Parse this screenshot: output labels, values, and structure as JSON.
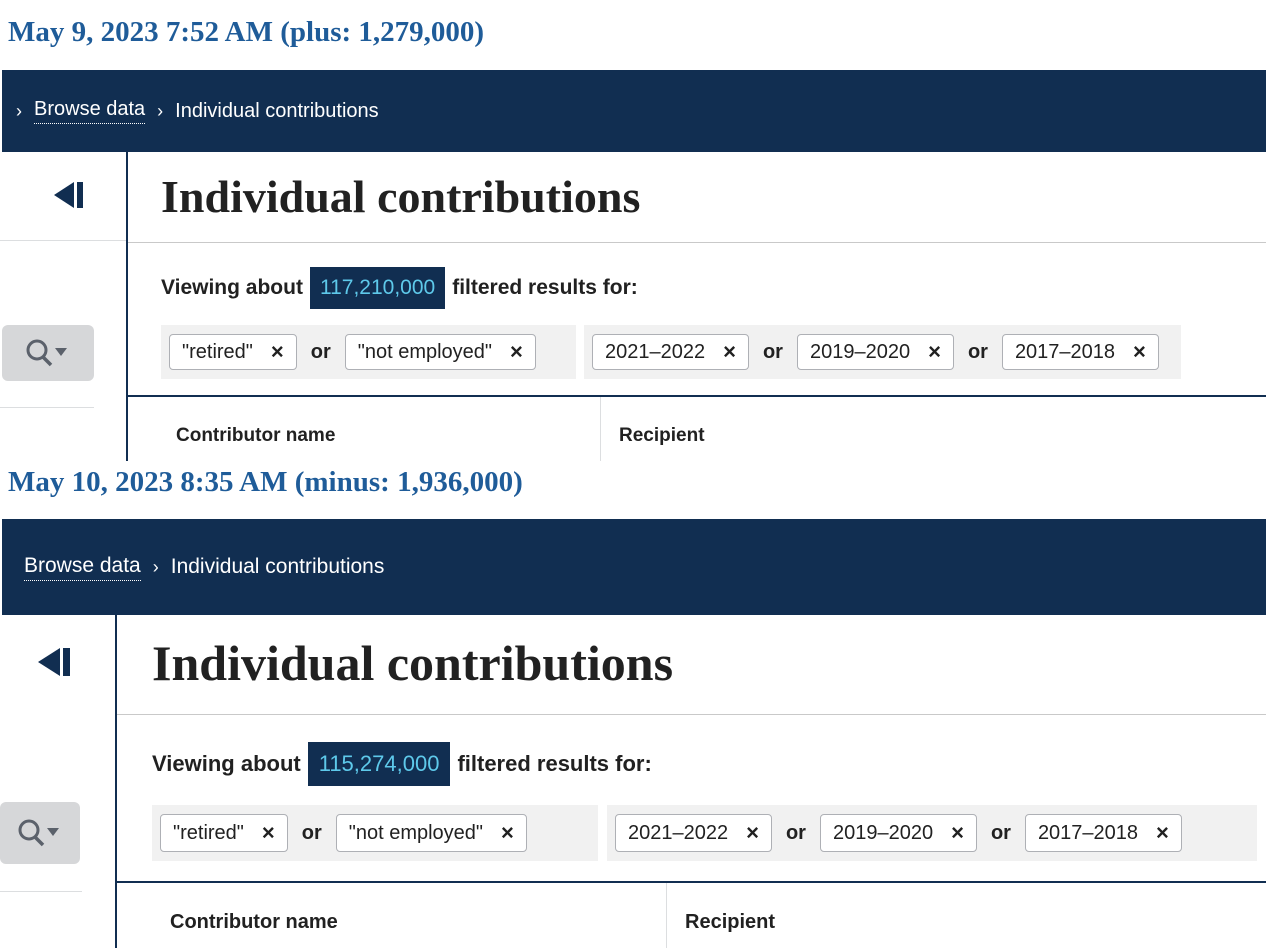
{
  "panels": [
    {
      "caption": "May 9, 2023  7:52 AM  (plus: 1,279,000)",
      "breadcrumb": {
        "sep": "›",
        "link": "Browse data",
        "current": "Individual contributions"
      },
      "title": "Individual contributions",
      "viewing_prefix": "Viewing about",
      "count": "117,210,000",
      "viewing_suffix": "filtered results for:",
      "group1": [
        "\"retired\"",
        "\"not employed\""
      ],
      "group2": [
        "2021–2022",
        "2019–2020",
        "2017–2018"
      ],
      "or_label": "or",
      "remove_glyph": "×",
      "columns": [
        "Contributor name",
        "Recipient"
      ]
    },
    {
      "caption": "May 10, 2023  8:35 AM  (minus: 1,936,000)",
      "breadcrumb": {
        "sep": "›",
        "link": "Browse data",
        "current": "Individual contributions"
      },
      "title": "Individual contributions",
      "viewing_prefix": "Viewing about",
      "count": "115,274,000",
      "viewing_suffix": "filtered results for:",
      "group1": [
        "\"retired\"",
        "\"not employed\""
      ],
      "group2": [
        "2021–2022",
        "2019–2020",
        "2017–2018"
      ],
      "or_label": "or",
      "remove_glyph": "×",
      "columns": [
        "Contributor name",
        "Recipient"
      ]
    }
  ],
  "icons": {
    "collapse": "collapse-left-icon",
    "search": "search-dropdown-icon"
  },
  "colors": {
    "navy": "#112e51",
    "caption_blue": "#1f5c99",
    "count_text": "#5ec9ea"
  }
}
